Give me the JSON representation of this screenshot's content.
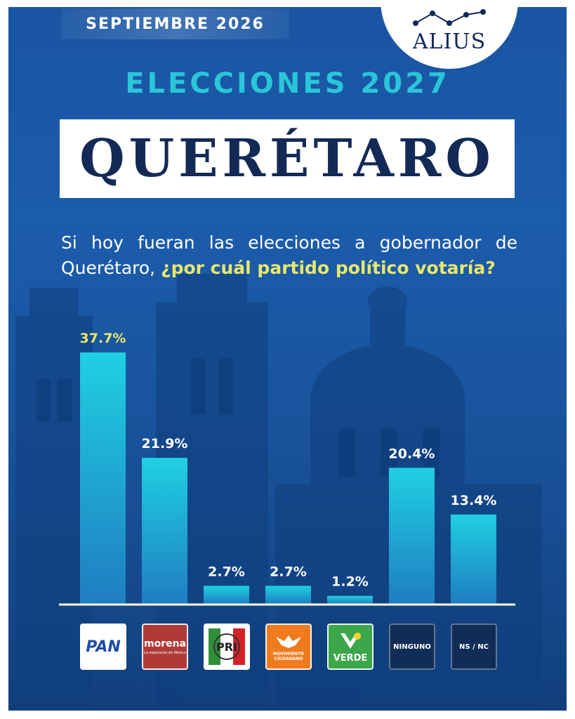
{
  "header": {
    "date_banner": "SEPTIEMBRE 2026",
    "brand": "ALIUS",
    "title_line1": "ELECCIONES 2027",
    "title_line2": "QUERÉTARO"
  },
  "question": {
    "plain": "Si hoy fueran las elecciones a gobernador de Querétaro, ",
    "highlight": "¿por cuál partido político votaría?"
  },
  "colors": {
    "bar_top": "#1fd0e2",
    "bar_bottom": "#1f7dc1",
    "label_default": "#ffffff",
    "label_highlight": "#e8e86a",
    "title_cyan": "#29c6d8",
    "navy": "#132a56"
  },
  "chart_data": {
    "type": "bar",
    "categories": [
      "PAN",
      "morena",
      "PRI",
      "MOVIMIENTO CIUDADANO",
      "VERDE",
      "NINGUNO",
      "NS / NC"
    ],
    "values": [
      37.7,
      21.9,
      2.7,
      2.7,
      1.2,
      20.4,
      13.4
    ],
    "value_labels": [
      "37.7%",
      "21.9%",
      "2.7%",
      "2.7%",
      "1.2%",
      "20.4%",
      "13.4%"
    ],
    "highlight_index": 0,
    "ylim": [
      0,
      40
    ]
  },
  "party_logos": {
    "pan": {
      "text": "PAN",
      "icon": "pan-logo"
    },
    "morena": {
      "text": "morena",
      "subtext": "La esperanza de México",
      "icon": "morena-logo"
    },
    "pri": {
      "icon": "pri-logo"
    },
    "mc": {
      "text": "MOVIMIENTO CIUDADANO",
      "icon": "mc-eagle-logo"
    },
    "verde": {
      "text": "VERDE",
      "icon": "verde-toucan-logo"
    },
    "ninguno": {
      "text": "NINGUNO"
    },
    "nsnc": {
      "text": "NS / NC"
    }
  }
}
